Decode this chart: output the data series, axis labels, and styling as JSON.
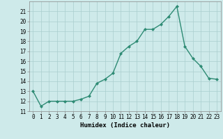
{
  "x": [
    0,
    1,
    2,
    3,
    4,
    5,
    6,
    7,
    8,
    9,
    10,
    11,
    12,
    13,
    14,
    15,
    16,
    17,
    18,
    19,
    20,
    21,
    22,
    23
  ],
  "y": [
    13.0,
    11.5,
    12.0,
    12.0,
    12.0,
    12.0,
    12.2,
    12.5,
    13.8,
    14.2,
    14.8,
    16.8,
    17.5,
    18.0,
    19.2,
    19.2,
    19.7,
    20.5,
    21.5,
    17.5,
    16.3,
    15.5,
    14.3,
    14.2
  ],
  "line_color": "#2e8b74",
  "marker": "D",
  "marker_size": 2,
  "line_width": 1.0,
  "bg_color": "#ceeaea",
  "grid_color": "#aacece",
  "xlabel": "Humidex (Indice chaleur)",
  "ylabel": "",
  "xlim": [
    -0.5,
    23.5
  ],
  "ylim": [
    11,
    22
  ],
  "yticks": [
    11,
    12,
    13,
    14,
    15,
    16,
    17,
    18,
    19,
    20,
    21
  ],
  "xticks": [
    0,
    1,
    2,
    3,
    4,
    5,
    6,
    7,
    8,
    9,
    10,
    11,
    12,
    13,
    14,
    15,
    16,
    17,
    18,
    19,
    20,
    21,
    22,
    23
  ],
  "tick_fontsize": 5.5,
  "label_fontsize": 6.5
}
